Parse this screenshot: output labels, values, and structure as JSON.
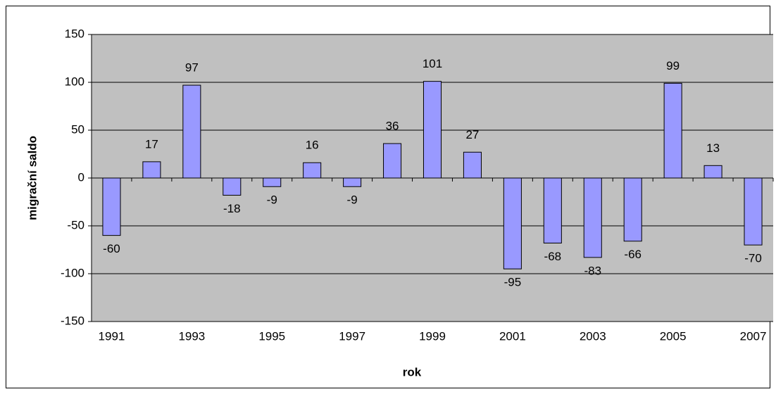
{
  "chart_data": {
    "type": "bar",
    "x_label": "rok",
    "y_label": "migrační saldo",
    "categories": [
      "1991",
      null,
      "1993",
      null,
      "1995",
      null,
      "1997",
      null,
      "1999",
      null,
      "2001",
      null,
      "2003",
      null,
      "2005",
      null,
      "2007"
    ],
    "values": [
      -60,
      17,
      97,
      -18,
      -9,
      16,
      -9,
      36,
      101,
      27,
      -95,
      -68,
      -83,
      -66,
      99,
      13,
      -70
    ],
    "color": "#9999ff",
    "ylim": [
      -150,
      150
    ],
    "yticks": [
      -150,
      -100,
      -50,
      0,
      50,
      100,
      150
    ],
    "grid": true
  }
}
